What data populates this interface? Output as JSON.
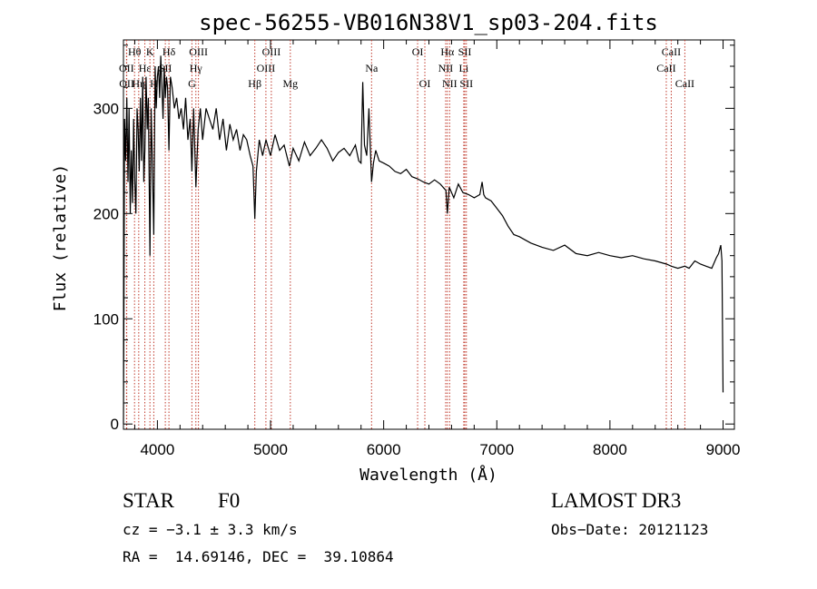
{
  "chart_data": {
    "type": "line",
    "title": "spec-56255-VB016N38V1_sp03-204.fits",
    "xlabel": "Wavelength (Å)",
    "ylabel": "Flux (relative)",
    "xlim": [
      3700,
      9100
    ],
    "ylim": [
      -5,
      365
    ],
    "xticks": [
      4000,
      5000,
      6000,
      7000,
      8000,
      9000
    ],
    "yticks": [
      0,
      100,
      200,
      300
    ],
    "x_tick_labels": [
      "4000",
      "5000",
      "6000",
      "7000",
      "8000",
      "9000"
    ],
    "y_tick_labels": [
      "0",
      "100",
      "200",
      "300"
    ],
    "spectrum": {
      "name": "flux",
      "x": [
        3700,
        3705,
        3710,
        3720,
        3730,
        3740,
        3750,
        3760,
        3770,
        3780,
        3790,
        3800,
        3810,
        3820,
        3830,
        3840,
        3850,
        3860,
        3870,
        3880,
        3889,
        3900,
        3910,
        3920,
        3934,
        3945,
        3955,
        3968,
        3980,
        3990,
        4000,
        4010,
        4020,
        4030,
        4040,
        4050,
        4060,
        4070,
        4080,
        4090,
        4102,
        4115,
        4130,
        4150,
        4170,
        4190,
        4210,
        4230,
        4250,
        4270,
        4290,
        4305,
        4320,
        4340,
        4360,
        4380,
        4400,
        4430,
        4460,
        4490,
        4520,
        4550,
        4580,
        4610,
        4640,
        4670,
        4700,
        4730,
        4760,
        4790,
        4820,
        4845,
        4861,
        4875,
        4900,
        4930,
        4960,
        5000,
        5040,
        5080,
        5120,
        5167,
        5200,
        5250,
        5300,
        5350,
        5400,
        5450,
        5500,
        5550,
        5600,
        5650,
        5700,
        5750,
        5780,
        5800,
        5815,
        5830,
        5850,
        5870,
        5893,
        5910,
        5930,
        5960,
        6000,
        6050,
        6100,
        6150,
        6200,
        6250,
        6300,
        6350,
        6400,
        6450,
        6500,
        6550,
        6563,
        6580,
        6620,
        6660,
        6700,
        6750,
        6800,
        6850,
        6870,
        6885,
        6900,
        6950,
        7000,
        7050,
        7100,
        7150,
        7200,
        7250,
        7300,
        7400,
        7500,
        7600,
        7700,
        7800,
        7900,
        8000,
        8100,
        8200,
        8300,
        8400,
        8500,
        8542,
        8600,
        8662,
        8700,
        8750,
        8800,
        8850,
        8900,
        8940,
        8960,
        8980,
        8990,
        9000
      ],
      "y": [
        0,
        130,
        290,
        250,
        310,
        230,
        300,
        200,
        260,
        210,
        290,
        230,
        200,
        300,
        280,
        240,
        310,
        250,
        330,
        230,
        260,
        330,
        280,
        310,
        160,
        300,
        250,
        180,
        340,
        300,
        330,
        340,
        310,
        350,
        320,
        290,
        340,
        310,
        330,
        320,
        260,
        330,
        320,
        300,
        310,
        290,
        300,
        280,
        310,
        270,
        290,
        240,
        300,
        225,
        280,
        300,
        270,
        300,
        290,
        280,
        300,
        270,
        290,
        260,
        285,
        270,
        280,
        260,
        275,
        270,
        255,
        245,
        195,
        240,
        270,
        255,
        270,
        255,
        275,
        260,
        265,
        245,
        262,
        250,
        268,
        255,
        262,
        270,
        262,
        250,
        258,
        262,
        255,
        265,
        250,
        248,
        325,
        265,
        255,
        300,
        230,
        248,
        260,
        250,
        248,
        245,
        240,
        238,
        242,
        235,
        233,
        230,
        228,
        232,
        228,
        222,
        200,
        225,
        215,
        228,
        220,
        218,
        215,
        218,
        230,
        218,
        215,
        212,
        205,
        198,
        188,
        180,
        178,
        175,
        172,
        168,
        165,
        170,
        162,
        160,
        163,
        160,
        158,
        160,
        157,
        155,
        152,
        150,
        148,
        150,
        148,
        155,
        152,
        150,
        148,
        158,
        162,
        170,
        155,
        30
      ]
    },
    "lines": [
      {
        "label": "Hθ",
        "x": 3798,
        "row": 1,
        "dx": 0
      },
      {
        "label": "OII",
        "x": 3727,
        "row": 2,
        "dx": 0
      },
      {
        "label": "OII",
        "x": 3729,
        "row": 3,
        "dx": 0
      },
      {
        "label": "K",
        "x": 3934,
        "row": 1,
        "dx": 0
      },
      {
        "label": "Hε",
        "x": 3889,
        "row": 2,
        "dx": 0
      },
      {
        "label": "Hη",
        "x": 3835,
        "row": 3,
        "dx": 0
      },
      {
        "label": "Hδ",
        "x": 4102,
        "row": 1,
        "dx": 0
      },
      {
        "label": "SII",
        "x": 4070,
        "row": 2,
        "dx": 0
      },
      {
        "label": "H",
        "x": 3968,
        "row": 3,
        "dx": 0
      },
      {
        "label": "OIII",
        "x": 4363,
        "row": 1,
        "dx": 0
      },
      {
        "label": "Hγ",
        "x": 4340,
        "row": 2,
        "dx": 0
      },
      {
        "label": "G",
        "x": 4305,
        "row": 3,
        "dx": 0
      },
      {
        "label": "OIII",
        "x": 5007,
        "row": 1,
        "dx": 0
      },
      {
        "label": "OIII",
        "x": 4959,
        "row": 2,
        "dx": 0
      },
      {
        "label": "Hβ",
        "x": 4861,
        "row": 3,
        "dx": 0
      },
      {
        "label": "Mg",
        "x": 5175,
        "row": 3,
        "dx": 0
      },
      {
        "label": "Na",
        "x": 5893,
        "row": 2,
        "dx": 0
      },
      {
        "label": "OI",
        "x": 6300,
        "row": 1,
        "dx": 0
      },
      {
        "label": "OI",
        "x": 6364,
        "row": 3,
        "dx": 0
      },
      {
        "label": "Hα",
        "x": 6563,
        "row": 1,
        "dx": 0
      },
      {
        "label": "NII",
        "x": 6548,
        "row": 2,
        "dx": 0
      },
      {
        "label": "NII",
        "x": 6583,
        "row": 3,
        "dx": 0
      },
      {
        "label": "SII",
        "x": 6717,
        "row": 1,
        "dx": 0
      },
      {
        "label": "Li",
        "x": 6708,
        "row": 2,
        "dx": 0
      },
      {
        "label": "SII",
        "x": 6731,
        "row": 3,
        "dx": 0
      },
      {
        "label": "CaII",
        "x": 8542,
        "row": 1,
        "dx": 0
      },
      {
        "label": "CaII",
        "x": 8498,
        "row": 2,
        "dx": 0
      },
      {
        "label": "CaII",
        "x": 8662,
        "row": 3,
        "dx": 0
      }
    ]
  },
  "info": {
    "object_class": "STAR",
    "subclass": "F0",
    "survey": "LAMOST DR3",
    "cz": "cz = −3.1 ± 3.3 km/s",
    "obs_date": "Obs−Date: 20121123",
    "radec": "RA =  14.69146, DEC =  39.10864"
  }
}
